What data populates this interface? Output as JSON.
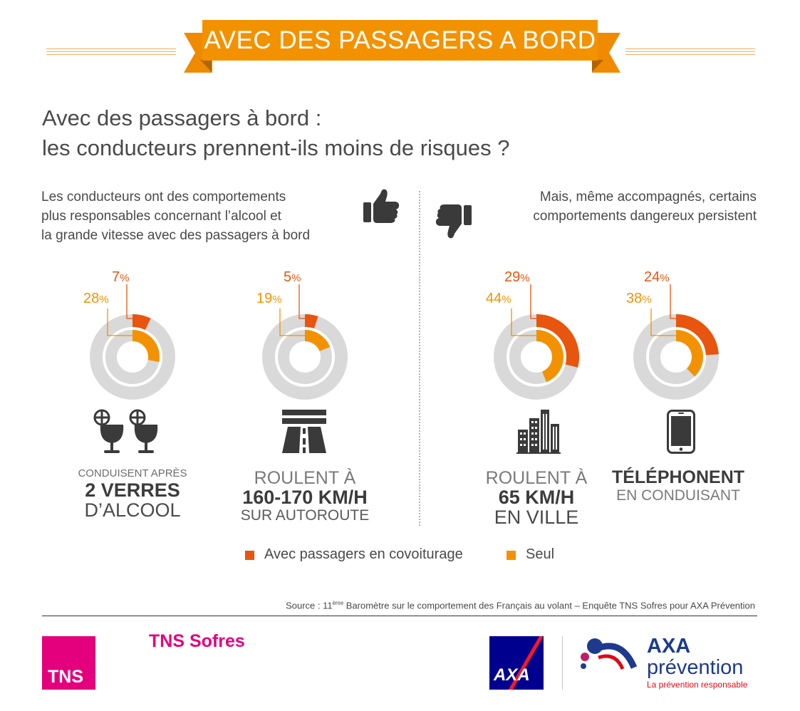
{
  "banner": {
    "title": "AVEC DES PASSAGERS A BORD"
  },
  "heading": {
    "line1": "Avec des passagers à bord :",
    "line2": "les conducteurs prennent-ils moins de risques ?"
  },
  "left_intro": [
    "Les conducteurs ont des comportements",
    "plus responsables concernant l’alcool et",
    "la grande vitesse avec des passagers à bord"
  ],
  "right_intro": [
    "Mais, même accompagnés, certains",
    "comportements dangereux persistent"
  ],
  "colors": {
    "passengers": "#e8550f",
    "alone": "#f39200",
    "track": "#d9d9d9",
    "accent_banner": "#f39200"
  },
  "chart_data": {
    "type": "pie",
    "unit": "%",
    "legend": [
      {
        "name": "Avec passagers en covoiturage",
        "color": "#e8550f"
      },
      {
        "name": "Seul",
        "color": "#f39200"
      }
    ],
    "charts": [
      {
        "category": "CONDUISENT APRÈS 2 VERRES D’ALCOOL",
        "passengers": 7,
        "alone": 28,
        "icon": "wine-glasses-icon"
      },
      {
        "category": "ROULENT À 160-170 KM/H SUR AUTOROUTE",
        "passengers": 5,
        "alone": 19,
        "icon": "highway-icon"
      },
      {
        "category": "ROULENT À 65 KM/H EN VILLE",
        "passengers": 29,
        "alone": 44,
        "icon": "city-buildings-icon"
      },
      {
        "category": "TÉLÉPHONENT EN CONDUISANT",
        "passengers": 24,
        "alone": 38,
        "icon": "smartphone-icon"
      }
    ]
  },
  "captions": [
    {
      "l1": "CONDUISENT APRÈS",
      "l2": "2 VERRES",
      "l3": "D’ALCOOL"
    },
    {
      "l1": "ROULENT À",
      "l2": "160-170 KM/H",
      "l3": "SUR AUTOROUTE"
    },
    {
      "l1": "ROULENT À",
      "l2": "65 KM/H",
      "l3": "EN VILLE"
    },
    {
      "l1": "TÉLÉPHONENT",
      "l2": "EN CONDUISANT"
    }
  ],
  "pct_symbol": "%",
  "labels": {
    "c1": {
      "passengers": "7",
      "alone": "28"
    },
    "c2": {
      "passengers": "5",
      "alone": "19"
    },
    "c3": {
      "passengers": "29",
      "alone": "44"
    },
    "c4": {
      "passengers": "24",
      "alone": "38"
    }
  },
  "source": {
    "prefix": "Source : 11",
    "sup": "ème",
    "rest": " Baromètre sur le comportement des Français au volant – Enquête TNS Sofres pour AXA Prévention"
  },
  "logos": {
    "tns_box": "TNS",
    "tns_name": "TNS Sofres",
    "axa_box": "AXA",
    "axa_title": "AXA",
    "axa_sub": "prévention",
    "axa_tagline": "La prévention responsable"
  }
}
